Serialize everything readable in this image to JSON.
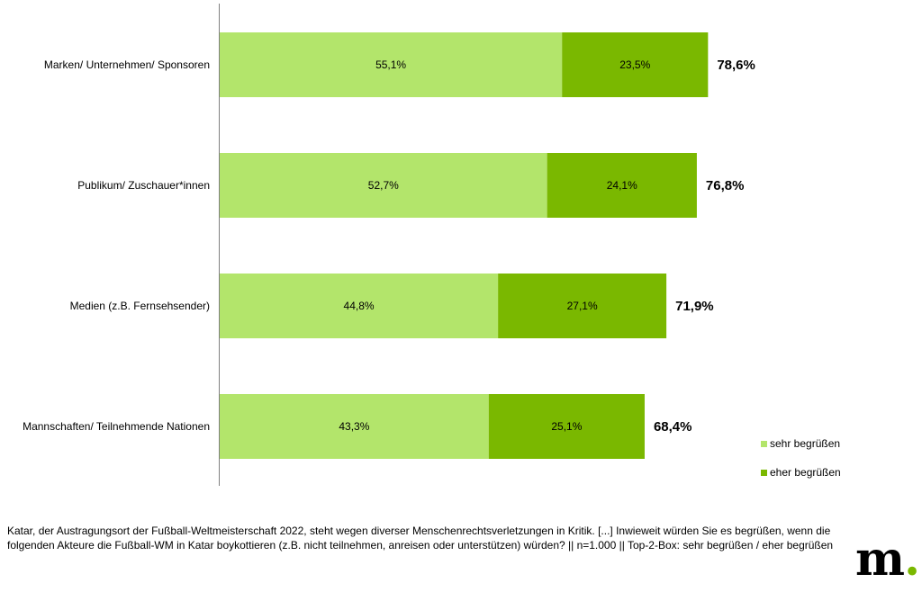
{
  "chart_data": {
    "type": "bar",
    "orientation": "horizontal",
    "stacked": true,
    "categories": [
      "Marken/ Unternehmen/ Sponsoren",
      "Publikum/ Zuschauer*innen",
      "Medien (z.B. Fernsehsender)",
      "Mannschaften/ Teilnehmende Nationen"
    ],
    "series": [
      {
        "name": "sehr begrüßen",
        "color": "#b3e56b",
        "values": [
          55.1,
          52.7,
          44.8,
          43.3
        ],
        "labels": [
          "55,1%",
          "52,7%",
          "44,8%",
          "43,3%"
        ]
      },
      {
        "name": "eher begrüßen",
        "color": "#7ab800",
        "values": [
          23.5,
          24.1,
          27.1,
          25.1
        ],
        "labels": [
          "23,5%",
          "24,1%",
          "27,1%",
          "25,1%"
        ]
      }
    ],
    "totals": [
      78.6,
      76.8,
      71.9,
      68.4
    ],
    "total_labels": [
      "78,6%",
      "76,8%",
      "71,9%",
      "68,4%"
    ],
    "xlim": [
      0,
      100
    ],
    "grid": false,
    "legend_position": "bottom-right"
  },
  "footnote": "Katar, der Austragungsort der Fußball-Weltmeisterschaft 2022, steht wegen diverser Menschenrechtsverletzungen in Kritik. [...] Inwieweit würden Sie es begrüßen, wenn die folgenden Akteure die Fußball-WM in Katar boykottieren (z.B. nicht teilnehmen, anreisen oder unterstützen) würden? || n=1.000 || Top-2-Box: sehr begrüßen / eher begrüßen",
  "logo": {
    "text": "m",
    "dot": "."
  }
}
